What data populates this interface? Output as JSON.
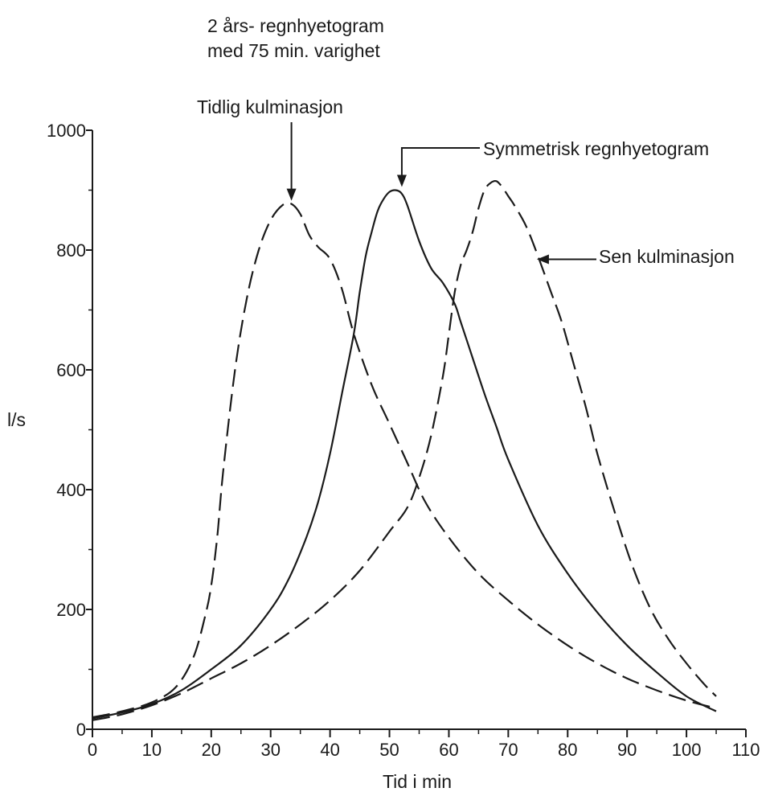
{
  "chart_data": {
    "type": "line",
    "title_lines": [
      "2 års- regnhyetogram",
      "med 75 min. varighet"
    ],
    "xlabel": "Tid i min",
    "ylabel": "l/s",
    "xlim": [
      0,
      110
    ],
    "ylim": [
      0,
      1000
    ],
    "x_ticks": [
      "0",
      "10",
      "20",
      "30",
      "40",
      "50",
      "60",
      "70",
      "80",
      "90",
      "100",
      "110"
    ],
    "y_ticks": [
      "0",
      "200",
      "400",
      "600",
      "800",
      "1000"
    ],
    "grid": false,
    "series": [
      {
        "name": "Tidlig kulminasjon",
        "style": "dashed",
        "x": [
          0,
          5,
          10,
          14,
          17,
          19,
          20,
          21,
          22,
          24,
          26,
          28,
          30,
          32,
          33.5,
          35,
          36.5,
          38,
          40,
          42,
          44,
          47,
          50,
          53,
          56,
          60,
          65,
          70,
          75,
          80,
          85,
          90,
          95,
          100,
          105
        ],
        "y": [
          20,
          30,
          45,
          70,
          120,
          190,
          240,
          320,
          430,
          600,
          720,
          800,
          850,
          875,
          877,
          860,
          825,
          805,
          785,
          735,
          660,
          575,
          510,
          445,
          380,
          320,
          260,
          215,
          175,
          140,
          110,
          85,
          65,
          48,
          35
        ]
      },
      {
        "name": "Symmetrisk regnhyetogram",
        "style": "solid",
        "x": [
          0,
          5,
          10,
          15,
          20,
          25,
          30,
          33,
          36,
          38,
          40,
          42,
          44,
          45,
          46,
          47,
          48,
          49,
          50,
          51,
          52,
          53,
          55,
          57,
          59,
          61,
          62,
          64,
          66,
          68,
          70,
          75,
          80,
          85,
          90,
          95,
          100,
          105
        ],
        "y": [
          18,
          28,
          42,
          65,
          100,
          140,
          200,
          250,
          320,
          380,
          460,
          560,
          660,
          730,
          790,
          830,
          865,
          885,
          897,
          900,
          895,
          875,
          815,
          770,
          745,
          710,
          680,
          620,
          560,
          505,
          450,
          340,
          260,
          195,
          140,
          95,
          55,
          30
        ]
      },
      {
        "name": "Sen kulminasjon",
        "style": "dashed",
        "x": [
          0,
          5,
          10,
          15,
          20,
          25,
          30,
          35,
          40,
          45,
          50,
          53,
          55,
          57,
          59,
          60,
          61,
          62,
          63,
          64,
          65,
          66,
          67,
          68,
          69,
          70,
          71,
          73,
          75,
          77,
          79,
          81,
          83,
          85,
          88,
          91,
          94,
          97,
          100,
          103,
          105
        ],
        "y": [
          15,
          25,
          40,
          60,
          85,
          110,
          140,
          175,
          215,
          265,
          330,
          370,
          420,
          490,
          590,
          660,
          730,
          775,
          800,
          830,
          870,
          900,
          912,
          915,
          905,
          890,
          875,
          840,
          790,
          735,
          680,
          610,
          540,
          460,
          360,
          270,
          200,
          150,
          110,
          75,
          55
        ]
      }
    ],
    "annotations": [
      {
        "text": "Tidlig kulminasjon",
        "series": 0,
        "x": 33.5,
        "y": 877
      },
      {
        "text": "Symmetrisk regnhyetogram",
        "series": 1,
        "x": 51,
        "y": 900
      },
      {
        "text": "Sen kulminasjon",
        "series": 2,
        "x": 74,
        "y": 790
      }
    ]
  }
}
